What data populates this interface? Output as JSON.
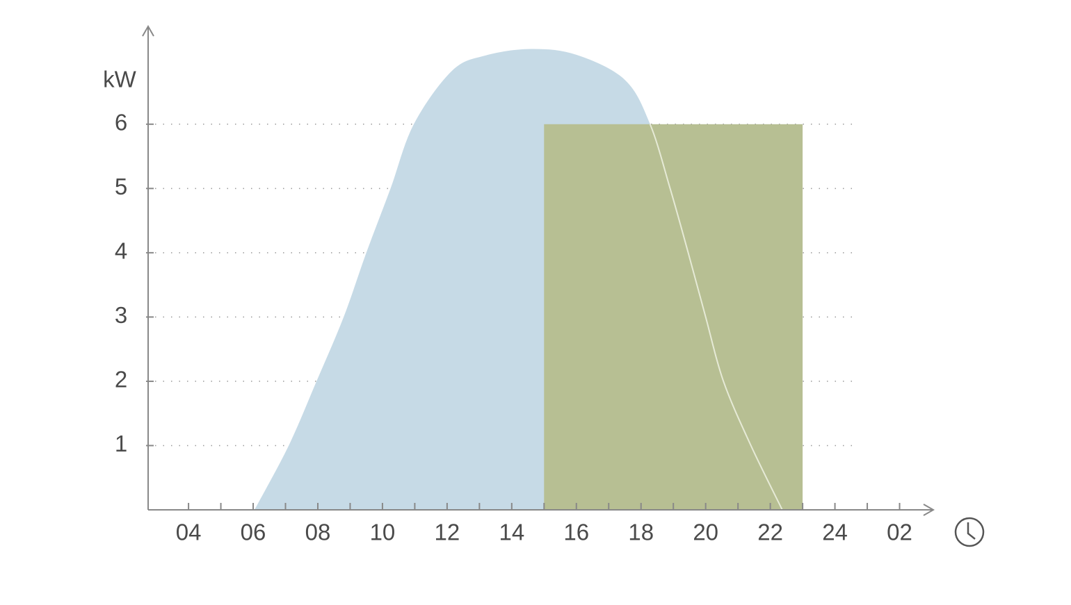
{
  "chart_data": {
    "type": "area",
    "ylabel": "kW",
    "xlim": [
      2.75,
      27
    ],
    "ylim": [
      0,
      7.5
    ],
    "xticks": [
      {
        "value": 4,
        "label": "04"
      },
      {
        "value": 6,
        "label": "06"
      },
      {
        "value": 8,
        "label": "08"
      },
      10,
      12,
      14,
      16,
      18,
      20,
      22,
      24,
      {
        "value": 26,
        "label": "02"
      }
    ],
    "xminorticks": [
      5,
      7,
      9,
      11,
      13,
      15,
      17,
      19,
      21,
      23,
      25
    ],
    "yticks": [
      1,
      2,
      3,
      4,
      5,
      6
    ],
    "grid": true,
    "series": [
      {
        "color": "#c6dae6",
        "x": [
          6.04,
          7.1,
          7.96,
          8.8,
          9.5,
          10.25,
          10.97,
          12.15,
          13.2,
          14.6,
          16.0,
          17.5,
          18.28,
          18.9,
          19.46,
          20.0,
          20.55,
          21.4,
          22.37
        ],
        "values": [
          0,
          1,
          2,
          3,
          4,
          5,
          6,
          6.83,
          7.07,
          7.17,
          7.08,
          6.69,
          6,
          5,
          4,
          3,
          2,
          1,
          0
        ]
      }
    ],
    "blocks": [
      {
        "color": "#b7bf93",
        "x": [
          15,
          23
        ],
        "value": 6
      }
    ]
  }
}
